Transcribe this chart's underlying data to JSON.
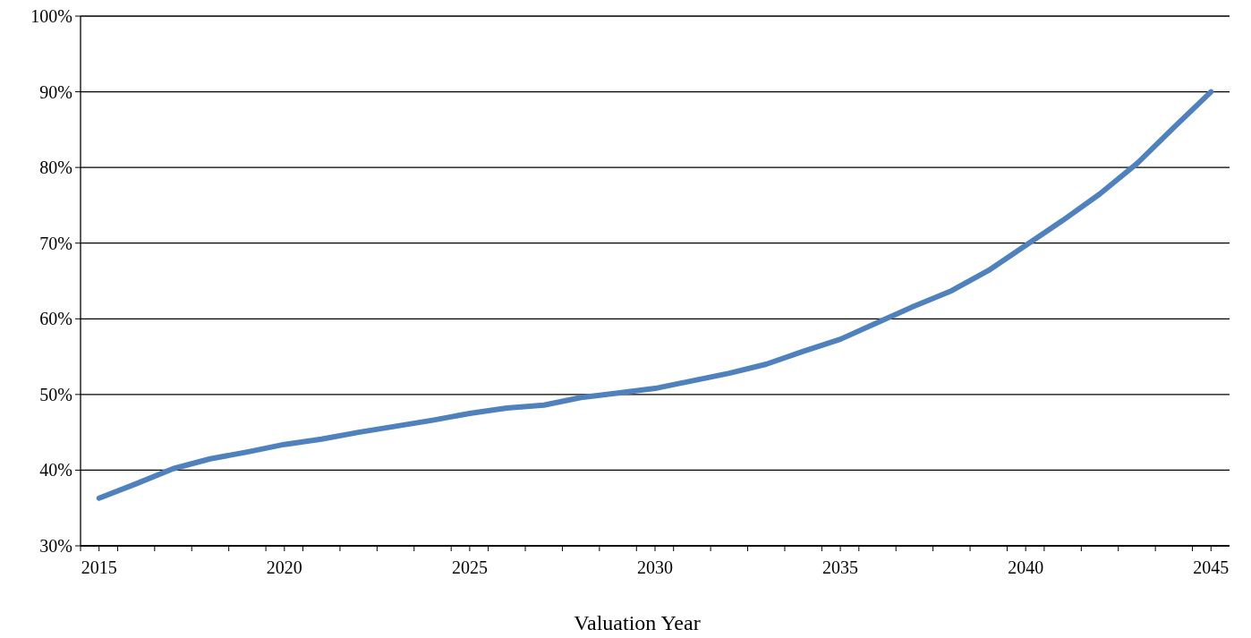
{
  "chart_data": {
    "type": "line",
    "xlabel": "Valuation Year",
    "x": [
      2015,
      2016,
      2017,
      2018,
      2019,
      2020,
      2021,
      2022,
      2023,
      2024,
      2025,
      2026,
      2027,
      2028,
      2029,
      2030,
      2031,
      2032,
      2033,
      2034,
      2035,
      2036,
      2037,
      2038,
      2039,
      2040,
      2041,
      2042,
      2043,
      2044,
      2045
    ],
    "series": [
      {
        "color": "#4f81bd",
        "values": [
          36.3,
          38.2,
          40.2,
          41.5,
          42.4,
          43.4,
          44.1,
          45.0,
          45.8,
          46.6,
          47.5,
          48.2,
          48.6,
          49.6,
          50.2,
          50.8,
          51.8,
          52.8,
          54.0,
          55.7,
          57.3,
          59.5,
          61.7,
          63.7,
          66.4,
          69.7,
          73.0,
          76.5,
          80.5,
          85.3,
          90.0
        ]
      }
    ],
    "xlim": [
      2014.5,
      2045.5
    ],
    "xticks": [
      {
        "value": 2015,
        "label": "2015"
      },
      {
        "value": 2020,
        "label": "2020"
      },
      {
        "value": 2025,
        "label": "2025"
      },
      {
        "value": 2030,
        "label": "2030"
      },
      {
        "value": 2035,
        "label": "2035"
      },
      {
        "value": 2040,
        "label": "2040"
      },
      {
        "value": 2045,
        "label": "2045"
      }
    ],
    "ylim": [
      30,
      100
    ],
    "yticks": [
      {
        "value": 30,
        "label": "30%"
      },
      {
        "value": 40,
        "label": "40%"
      },
      {
        "value": 50,
        "label": "50%"
      },
      {
        "value": 60,
        "label": "60%"
      },
      {
        "value": 70,
        "label": "70%"
      },
      {
        "value": 80,
        "label": "80%"
      },
      {
        "value": 90,
        "label": "90%"
      },
      {
        "value": 100,
        "label": "100%"
      }
    ],
    "grid": "y",
    "marker": "none",
    "line_style": "solid"
  }
}
